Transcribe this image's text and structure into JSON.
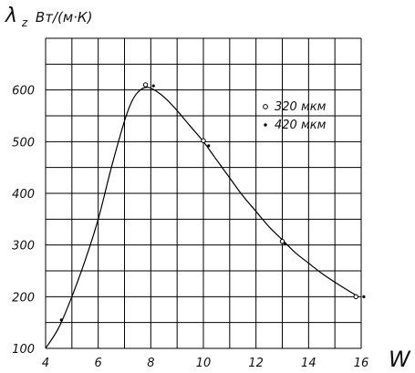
{
  "chart_data": {
    "type": "line",
    "ylabel_symbol": "λ",
    "ylabel_subscript": "z",
    "ylabel_units": "Вт/(м·К)",
    "xlabel": "W",
    "xlim": [
      4,
      16
    ],
    "ylim": [
      100,
      700
    ],
    "x_ticks": [
      4,
      6,
      8,
      10,
      12,
      14,
      16
    ],
    "x_tick_labels": [
      "4",
      "6",
      "8",
      "10",
      "12",
      "14",
      "16"
    ],
    "y_ticks": [
      100,
      200,
      300,
      400,
      500,
      600
    ],
    "y_tick_labels": [
      "100",
      "200",
      "300",
      "400",
      "500",
      "600"
    ],
    "grid": true,
    "legend_position": "top-right",
    "fitted_curve": {
      "x": [
        4.0,
        4.5,
        5.0,
        5.5,
        6.0,
        6.5,
        7.0,
        7.3,
        7.6,
        7.9,
        8.2,
        8.6,
        9.0,
        9.5,
        10.0,
        10.5,
        11.0,
        11.5,
        12.0,
        12.5,
        13.0,
        13.5,
        14.0,
        14.5,
        15.0,
        15.5,
        15.9
      ],
      "y": [
        100,
        140,
        200,
        270,
        350,
        450,
        540,
        580,
        600,
        605,
        598,
        582,
        560,
        530,
        500,
        465,
        430,
        395,
        365,
        335,
        310,
        285,
        265,
        245,
        228,
        212,
        200
      ]
    },
    "series": [
      {
        "name": "320 мкм",
        "marker": "circle",
        "x": [
          7.8,
          10.0,
          13.0,
          15.8
        ],
        "y": [
          610,
          502,
          307,
          200
        ]
      },
      {
        "name": "420 мкм",
        "marker": "dot",
        "x": [
          4.6,
          8.1,
          10.2,
          13.1,
          16.1
        ],
        "y": [
          155,
          608,
          492,
          302,
          200
        ]
      }
    ]
  }
}
